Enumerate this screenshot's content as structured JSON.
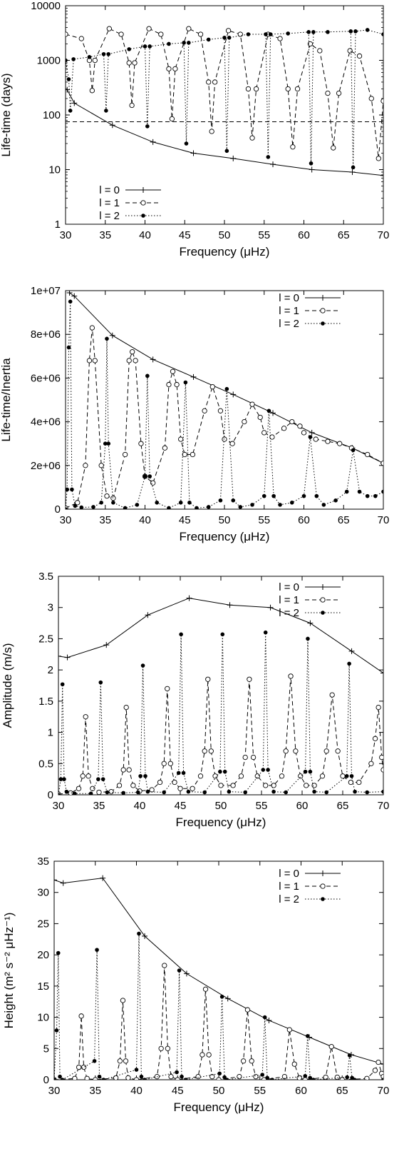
{
  "chart_data": [
    {
      "type": "line",
      "xlabel": "Frequency (μHz)",
      "ylabel": "Life-time (days)",
      "xlim": [
        30,
        70
      ],
      "ylim": [
        1,
        10000
      ],
      "yscale": "log",
      "grid": false,
      "legend_position": "bottom-left",
      "x_ticks": [
        "30",
        "35",
        "40",
        "45",
        "50",
        "55",
        "60",
        "65",
        "70"
      ],
      "y_ticks": [
        "1",
        "10",
        "100",
        "1000",
        "10000"
      ],
      "reference_line": {
        "y": 75,
        "style": "dashed"
      },
      "series": [
        {
          "name": "l = 0",
          "style": "solid",
          "marker": "plus",
          "x": [
            30.2,
            31.1,
            35.9,
            41.0,
            46.1,
            51.1,
            56.1,
            61.0,
            66.1,
            70.0
          ],
          "y": [
            290,
            165,
            65,
            32,
            20,
            16,
            12.5,
            10,
            9,
            7.8
          ]
        },
        {
          "name": "l = 1",
          "style": "dashed",
          "marker": "open-circle",
          "x": [
            30.0,
            32.0,
            33.0,
            33.35,
            33.7,
            35.5,
            37.0,
            38.0,
            38.35,
            38.7,
            40.5,
            42.0,
            43.0,
            43.4,
            43.8,
            45.5,
            47.0,
            48.0,
            48.4,
            48.8,
            50.5,
            52.0,
            53.0,
            53.5,
            54.0,
            55.5,
            57.0,
            58.0,
            58.6,
            59.2,
            60.8,
            62.0,
            63.0,
            63.7,
            64.4,
            65.8,
            67.0,
            68.5,
            69.4,
            70.0
          ],
          "y": [
            3000,
            2500,
            1000,
            280,
            1000,
            3800,
            3000,
            900,
            150,
            900,
            3800,
            3000,
            700,
            85,
            700,
            3800,
            3000,
            400,
            50,
            400,
            3500,
            3000,
            300,
            38,
            300,
            3000,
            2500,
            300,
            26,
            300,
            2000,
            1500,
            250,
            25,
            250,
            1500,
            1200,
            200,
            16,
            180
          ]
        },
        {
          "name": "l = 2",
          "style": "dotted",
          "marker": "filled-circle",
          "x": [
            30.0,
            30.4,
            30.6,
            31.0,
            33.0,
            34.8,
            35.1,
            35.4,
            38.0,
            40.0,
            40.3,
            40.6,
            43.0,
            44.9,
            45.2,
            45.5,
            48.0,
            50.0,
            50.3,
            50.6,
            53.0,
            55.2,
            55.5,
            55.8,
            58.0,
            60.6,
            60.9,
            61.2,
            63.0,
            65.9,
            66.2,
            66.5,
            68.0,
            70.0
          ],
          "y": [
            1000,
            450,
            120,
            1050,
            1150,
            1300,
            120,
            1300,
            1600,
            1800,
            62,
            1800,
            2000,
            2100,
            30,
            2100,
            2400,
            2600,
            22,
            2600,
            3000,
            3000,
            17,
            3000,
            3100,
            3300,
            13,
            3300,
            3300,
            3400,
            11,
            3400,
            3600,
            3000
          ]
        }
      ]
    },
    {
      "type": "line",
      "xlabel": "Frequency (μHz)",
      "ylabel": "Life-time/Inertia",
      "xlim": [
        30,
        70
      ],
      "ylim": [
        0,
        10000000
      ],
      "grid": false,
      "legend_position": "top-right",
      "x_ticks": [
        "30",
        "35",
        "40",
        "45",
        "50",
        "55",
        "60",
        "65",
        "70"
      ],
      "y_ticks": [
        "0",
        "2e+06",
        "4e+06",
        "6e+06",
        "8e+06",
        "1e+07"
      ],
      "series": [
        {
          "name": "l = 0",
          "style": "solid",
          "marker": "plus",
          "x": [
            30.5,
            31.1,
            35.9,
            41.0,
            46.1,
            51.1,
            56.1,
            61.0,
            66.1,
            70.0
          ],
          "y": [
            9900000,
            9750000,
            7950000,
            6850000,
            6050000,
            5250000,
            4400000,
            3500000,
            2800000,
            2100000
          ]
        },
        {
          "name": "l = 1",
          "style": "dashed",
          "marker": "open-circle",
          "x": [
            30.0,
            31.5,
            32.5,
            33.0,
            33.35,
            33.7,
            34.5,
            35.2,
            36.0,
            37.5,
            38.0,
            38.4,
            38.8,
            39.5,
            40.0,
            41.0,
            42.5,
            43.0,
            43.5,
            44.0,
            44.5,
            45.0,
            46.0,
            47.5,
            48.5,
            49.5,
            50.0,
            51.0,
            52.5,
            53.5,
            54.5,
            55.0,
            56.0,
            57.5,
            58.5,
            59.5,
            60.0,
            61.5,
            63.0,
            64.5,
            66.0,
            68.0,
            70.0
          ],
          "y": [
            50000,
            300000,
            2000000,
            6800000,
            8300000,
            6800000,
            2000000,
            600000,
            500000,
            2500000,
            6800000,
            7200000,
            6800000,
            3000000,
            1500000,
            1200000,
            2800000,
            5700000,
            6300000,
            5700000,
            3200000,
            2500000,
            2500000,
            4500000,
            5600000,
            4500000,
            3200000,
            3000000,
            4000000,
            4800000,
            4200000,
            3500000,
            3300000,
            3700000,
            4000000,
            3800000,
            3500000,
            3200000,
            3100000,
            3000000,
            2800000,
            2500000,
            2100000
          ]
        },
        {
          "name": "l = 2",
          "style": "dotted",
          "marker": "filled-circle",
          "x": [
            30.0,
            30.2,
            30.4,
            30.6,
            30.8,
            31.2,
            32.0,
            33.5,
            34.5,
            35.0,
            35.2,
            35.4,
            36.0,
            37.5,
            39.0,
            40.0,
            40.3,
            40.6,
            41.5,
            43.0,
            44.5,
            45.1,
            45.6,
            46.5,
            48.0,
            49.5,
            50.3,
            51.1,
            52.0,
            53.5,
            55.0,
            55.6,
            56.2,
            57.0,
            58.5,
            60.0,
            60.8,
            61.6,
            62.5,
            64.0,
            65.4,
            66.2,
            67.0,
            68.0,
            69.0,
            70.0
          ],
          "y": [
            0,
            900000,
            7400000,
            9500000,
            900000,
            150000,
            80000,
            100000,
            300000,
            3000000,
            7800000,
            3000000,
            300000,
            50000,
            200000,
            1500000,
            6100000,
            1500000,
            300000,
            50000,
            300000,
            5800000,
            300000,
            50000,
            100000,
            400000,
            5500000,
            400000,
            100000,
            200000,
            600000,
            4500000,
            600000,
            200000,
            300000,
            600000,
            3300000,
            600000,
            200000,
            400000,
            800000,
            2700000,
            800000,
            600000,
            600000,
            800000
          ]
        }
      ]
    },
    {
      "type": "line",
      "xlabel": "Frequency (μHz)",
      "ylabel": "Amplitude (m/s)",
      "xlim": [
        30,
        70
      ],
      "ylim": [
        0,
        3.5
      ],
      "grid": false,
      "legend_position": "top-right",
      "x_ticks": [
        "30",
        "35",
        "40",
        "45",
        "50",
        "55",
        "60",
        "65",
        "70"
      ],
      "y_ticks": [
        "0",
        "0.5",
        "1",
        "1.5",
        "2",
        "2.5",
        "3",
        "3.5"
      ],
      "series": [
        {
          "name": "l = 0",
          "style": "solid",
          "marker": "plus",
          "x": [
            30.0,
            31.1,
            35.9,
            41.0,
            46.1,
            51.1,
            56.1,
            61.0,
            66.1,
            70.0
          ],
          "y": [
            2.22,
            2.2,
            2.4,
            2.88,
            3.15,
            3.04,
            3.0,
            2.75,
            2.3,
            1.95
          ]
        },
        {
          "name": "l = 1",
          "style": "dashed",
          "marker": "open-circle",
          "x": [
            30.0,
            31.5,
            32.5,
            33.0,
            33.35,
            33.7,
            34.2,
            35.0,
            36.5,
            37.5,
            38.0,
            38.35,
            38.7,
            39.2,
            40.0,
            41.5,
            42.5,
            43.0,
            43.4,
            43.8,
            44.3,
            45.0,
            46.5,
            47.5,
            48.0,
            48.4,
            48.8,
            49.3,
            50.0,
            51.5,
            52.5,
            53.0,
            53.5,
            54.0,
            54.5,
            55.5,
            56.5,
            57.5,
            58.0,
            58.6,
            59.2,
            59.8,
            60.5,
            61.5,
            62.5,
            63.0,
            63.7,
            64.4,
            65.0,
            66.0,
            67.0,
            68.5,
            69.0,
            69.4,
            69.8,
            70.0
          ],
          "y": [
            0.01,
            0.03,
            0.1,
            0.3,
            1.25,
            0.3,
            0.1,
            0.04,
            0.05,
            0.15,
            0.4,
            1.4,
            0.4,
            0.15,
            0.06,
            0.08,
            0.2,
            0.5,
            1.7,
            0.5,
            0.2,
            0.1,
            0.1,
            0.3,
            0.7,
            1.85,
            0.7,
            0.3,
            0.15,
            0.15,
            0.3,
            0.6,
            1.85,
            0.6,
            0.3,
            0.15,
            0.15,
            0.3,
            0.7,
            1.9,
            0.7,
            0.3,
            0.15,
            0.15,
            0.3,
            0.7,
            1.6,
            0.7,
            0.3,
            0.2,
            0.2,
            0.5,
            0.9,
            1.4,
            0.6,
            0.4
          ]
        },
        {
          "name": "l = 2",
          "style": "dotted",
          "marker": "filled-circle",
          "x": [
            30.0,
            30.3,
            30.5,
            30.7,
            31.0,
            32.0,
            34.0,
            34.9,
            35.2,
            35.5,
            36.0,
            38.0,
            39.8,
            40.1,
            40.4,
            40.7,
            41.0,
            43.0,
            44.8,
            45.1,
            45.4,
            46.0,
            48.0,
            49.9,
            50.2,
            50.5,
            51.0,
            53.0,
            55.2,
            55.5,
            55.8,
            56.5,
            58.0,
            60.4,
            60.7,
            61.0,
            61.5,
            63.0,
            65.5,
            65.8,
            66.1,
            66.5,
            68.0,
            70.0
          ],
          "y": [
            0.0,
            0.25,
            1.77,
            0.25,
            0.05,
            0.02,
            0.02,
            0.25,
            1.8,
            0.25,
            0.04,
            0.03,
            0.04,
            0.3,
            2.07,
            0.3,
            0.05,
            0.04,
            0.35,
            2.57,
            0.35,
            0.05,
            0.04,
            0.37,
            2.57,
            0.37,
            0.05,
            0.04,
            0.4,
            2.6,
            0.4,
            0.05,
            0.04,
            0.37,
            2.5,
            0.37,
            0.05,
            0.04,
            0.3,
            2.1,
            0.3,
            0.05,
            0.04,
            0.05
          ]
        }
      ]
    },
    {
      "type": "line",
      "xlabel": "Frequency (μHz)",
      "ylabel": "Height (m² s⁻² μHz⁻¹)",
      "xlim": [
        30,
        70
      ],
      "ylim": [
        0,
        35
      ],
      "grid": false,
      "legend_position": "top-right",
      "x_ticks": [
        "30",
        "35",
        "40",
        "45",
        "50",
        "55",
        "60",
        "65",
        "70"
      ],
      "y_ticks": [
        "0",
        "5",
        "10",
        "15",
        "20",
        "25",
        "30",
        "35"
      ],
      "series": [
        {
          "name": "l = 0",
          "style": "solid",
          "marker": "plus",
          "x": [
            30.0,
            31.1,
            35.9,
            41.0,
            46.1,
            51.1,
            56.1,
            61.0,
            66.1,
            70.0
          ],
          "y": [
            32.0,
            31.5,
            32.3,
            23.0,
            17.0,
            13.0,
            9.5,
            6.8,
            4.0,
            2.5
          ]
        },
        {
          "name": "l = 1",
          "style": "dashed",
          "marker": "open-circle",
          "x": [
            30.0,
            32.5,
            33.0,
            33.3,
            33.6,
            34.0,
            35.0,
            37.5,
            38.0,
            38.35,
            38.7,
            39.0,
            40.0,
            42.5,
            43.0,
            43.4,
            43.8,
            44.2,
            45.0,
            47.5,
            48.0,
            48.4,
            48.8,
            49.2,
            50.0,
            52.5,
            53.0,
            53.5,
            54.0,
            54.5,
            55.5,
            58.0,
            58.6,
            59.2,
            59.8,
            60.5,
            63.0,
            63.7,
            64.4,
            65.0,
            68.0,
            69.0,
            69.4,
            69.8,
            70.0
          ],
          "y": [
            0.0,
            0.2,
            2.0,
            10.2,
            2.0,
            0.2,
            0.0,
            0.3,
            3.0,
            12.7,
            3.0,
            0.3,
            0.0,
            0.5,
            5.0,
            18.3,
            5.0,
            0.5,
            0.0,
            0.5,
            4.0,
            14.5,
            4.0,
            0.5,
            0.0,
            0.5,
            3.0,
            11.2,
            3.0,
            0.5,
            0.0,
            0.5,
            8.0,
            2.5,
            0.3,
            0.0,
            0.4,
            5.3,
            0.4,
            0.0,
            0.2,
            1.5,
            2.8,
            1.0,
            0.5
          ]
        },
        {
          "name": "l = 2",
          "style": "dotted",
          "marker": "filled-circle",
          "x": [
            30.0,
            30.3,
            30.5,
            30.7,
            31.0,
            34.9,
            35.2,
            35.5,
            36.0,
            40.0,
            40.3,
            40.6,
            41.0,
            44.9,
            45.2,
            45.5,
            46.0,
            50.1,
            50.4,
            50.7,
            51.0,
            55.3,
            55.6,
            55.9,
            56.5,
            60.5,
            60.8,
            61.1,
            61.5,
            65.6,
            65.9,
            66.2,
            66.5,
            70.0
          ],
          "y": [
            0.0,
            7.9,
            20.3,
            0.5,
            0.0,
            3.0,
            20.8,
            0.5,
            0.0,
            1.6,
            23.4,
            0.5,
            0.0,
            1.2,
            17.5,
            0.5,
            0.0,
            1.0,
            13.3,
            0.4,
            0.0,
            0.8,
            10.0,
            0.3,
            0.0,
            0.6,
            7.0,
            0.3,
            0.0,
            0.4,
            3.9,
            0.3,
            0.0,
            0.0
          ]
        }
      ]
    }
  ]
}
